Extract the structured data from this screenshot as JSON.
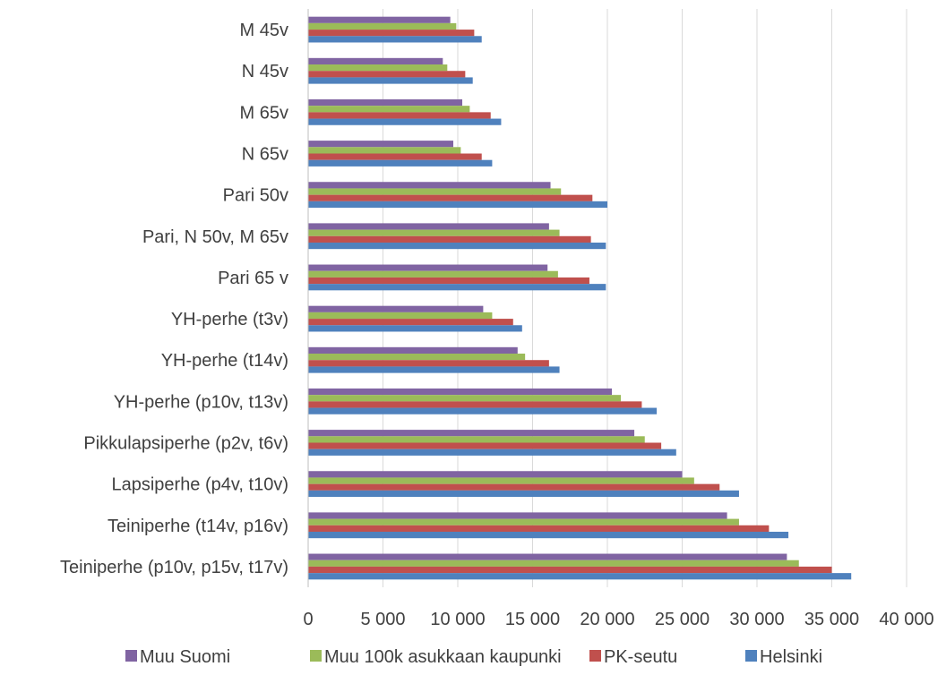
{
  "chart_data": {
    "type": "bar",
    "orientation": "horizontal",
    "categories": [
      "M 45v",
      "N 45v",
      "M 65v",
      "N 65v",
      "Pari 50v",
      "Pari, N 50v, M 65v",
      "Pari 65 v",
      "YH-perhe (t3v)",
      "YH-perhe (t14v)",
      "YH-perhe (p10v, t13v)",
      "Pikkulapsiperhe (p2v, t6v)",
      "Lapsiperhe (p4v, t10v)",
      "Teiniperhe  (t14v, p16v)",
      "Teiniperhe (p10v, p15v, t17v)"
    ],
    "series": [
      {
        "name": "Muu Suomi",
        "color": "#8064A2",
        "values": [
          9500,
          9000,
          10300,
          9700,
          16200,
          16100,
          16000,
          11700,
          14000,
          20300,
          21800,
          25000,
          28000,
          32000
        ]
      },
      {
        "name": "Muu 100k asukkaan kaupunki",
        "color": "#9BBB59",
        "values": [
          9900,
          9300,
          10800,
          10200,
          16900,
          16800,
          16700,
          12300,
          14500,
          20900,
          22500,
          25800,
          28800,
          32800
        ]
      },
      {
        "name": "PK-seutu",
        "color": "#C0504D",
        "values": [
          11100,
          10500,
          12200,
          11600,
          19000,
          18900,
          18800,
          13700,
          16100,
          22300,
          23600,
          27500,
          30800,
          35000
        ]
      },
      {
        "name": "Helsinki",
        "color": "#4F81BD",
        "values": [
          11600,
          11000,
          12900,
          12300,
          20000,
          19900,
          19900,
          14300,
          16800,
          23300,
          24600,
          28800,
          32100,
          36300
        ]
      }
    ],
    "xlim": [
      0,
      40000
    ],
    "xticks": [
      0,
      5000,
      10000,
      15000,
      20000,
      25000,
      30000,
      35000,
      40000
    ],
    "xtick_labels": [
      "0",
      "5 000",
      "10 000",
      "15 000",
      "20 000",
      "25 000",
      "30 000",
      "35 000",
      "40 000"
    ],
    "grid": "vertical",
    "legend_position": "bottom",
    "legend_order": [
      "Muu Suomi",
      "Muu 100k asukkaan kaupunki",
      "PK-seutu",
      "Helsinki"
    ]
  }
}
